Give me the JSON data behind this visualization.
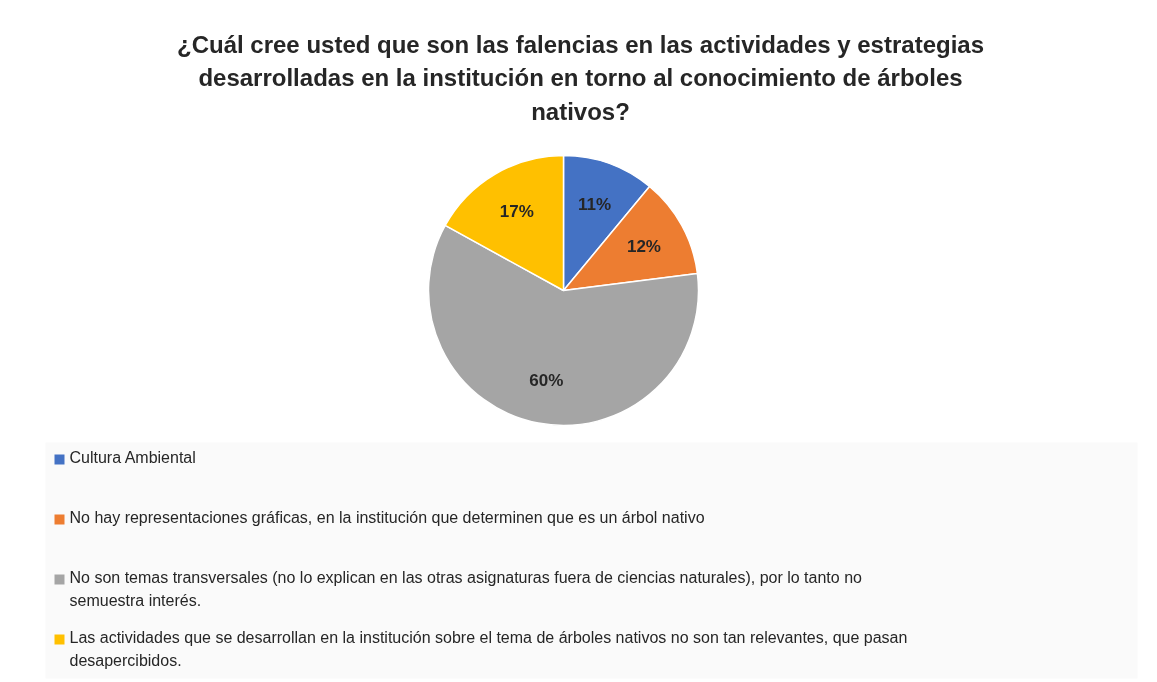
{
  "chart_data": {
    "type": "pie",
    "title": "¿Cuál cree usted que son las falencias en las actividades y estrategias desarrolladas en la institución en torno al conocimiento de árboles nativos?",
    "categories": [
      "Cultura Ambiental",
      "No hay representaciones gráficas, en la institución que determinen que es un árbol nativo",
      "No son temas transversales (no lo explican en las otras asignaturas fuera de ciencias naturales), por lo tanto no semuestra interés.",
      "Las actividades que se desarrollan en la institución sobre el tema de árboles nativos no son tan relevantes, que pasan desapercibidos."
    ],
    "values": [
      11,
      12,
      60,
      17
    ],
    "colors": [
      "#4472c4",
      "#ed7d31",
      "#a5a5a5",
      "#ffc000"
    ],
    "value_labels": [
      "11%",
      "12%",
      "60%",
      "17%"
    ],
    "legend": "bottom"
  }
}
